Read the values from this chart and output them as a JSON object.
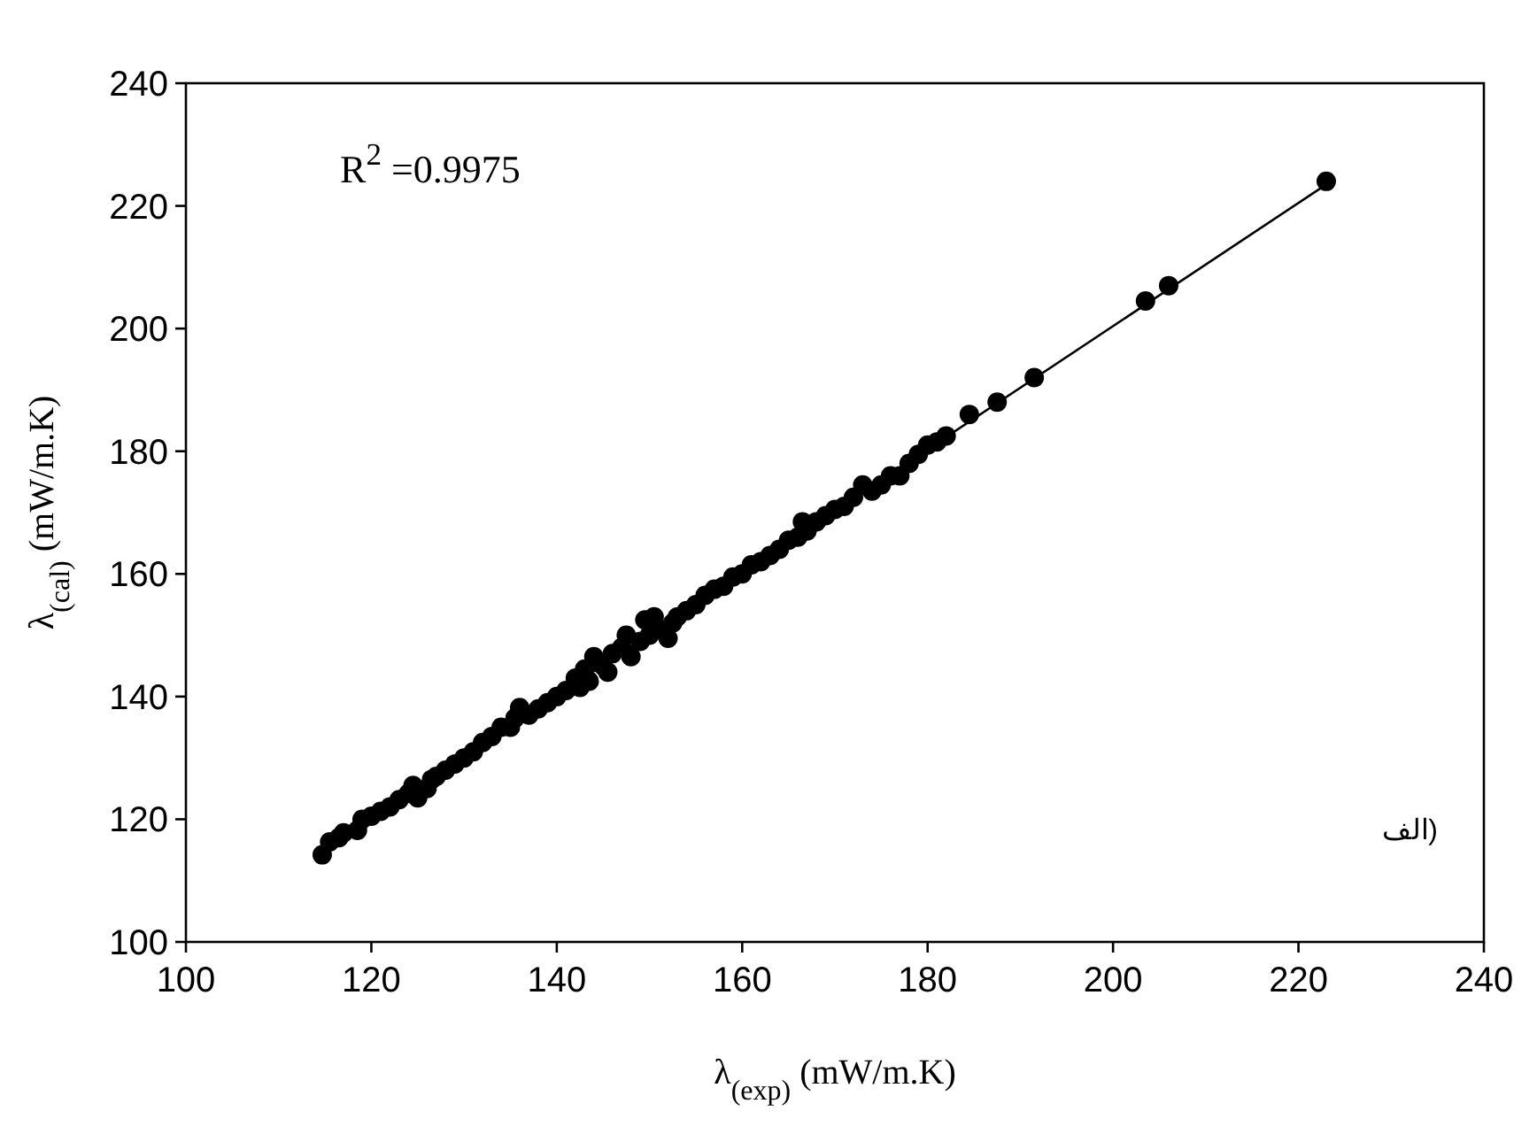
{
  "chart_data": {
    "type": "scatter",
    "xlabel": "λ$_{(exp)}$ (mW/m.K)",
    "ylabel": "λ$_{(cal)}$ (mW/m.K)",
    "xlim": [
      100,
      240
    ],
    "xticks": [
      100,
      120,
      140,
      160,
      180,
      200,
      220,
      240
    ],
    "ylim": [
      100,
      240
    ],
    "yticks": [
      100,
      120,
      140,
      160,
      180,
      200,
      220,
      240
    ],
    "grid": false,
    "annotations": [
      "R$^{2}$ =0.9975",
      "الف)"
    ],
    "series": [
      {
        "type": "scatter",
        "marker": "circle",
        "color": "#000000",
        "x": [
          114.7,
          115.5,
          116.5,
          117,
          118.5,
          119,
          120,
          121,
          122,
          123,
          124,
          124.5,
          125,
          126,
          126.5,
          127,
          128,
          129,
          130,
          131,
          132,
          133,
          134,
          135,
          135.5,
          136,
          137,
          138,
          139,
          140,
          141,
          142,
          142.5,
          143,
          143.5,
          144,
          145,
          145.5,
          146,
          147,
          147.5,
          148,
          149,
          149.5,
          150,
          150.5,
          151,
          152,
          152.5,
          153,
          154,
          155,
          156,
          157,
          158,
          159,
          160,
          161,
          162,
          163,
          164,
          165,
          166,
          166.5,
          167,
          168,
          169,
          170,
          171,
          172,
          173,
          174,
          175,
          176,
          177,
          178,
          179,
          180,
          181,
          182,
          184.5,
          187.5,
          191.5,
          203.5,
          206,
          223
        ],
        "values": [
          114.2,
          116.3,
          117,
          117.8,
          118.2,
          120,
          120.5,
          121.3,
          122,
          123.2,
          124.2,
          125.5,
          123.5,
          125,
          126.5,
          127,
          128,
          129,
          130,
          131,
          132.5,
          133.5,
          135,
          135,
          136.5,
          138.2,
          137,
          138,
          139,
          140,
          141,
          143,
          141.5,
          144.5,
          142.5,
          146.5,
          145,
          144,
          147,
          148,
          150,
          146.5,
          149,
          152.5,
          150,
          153,
          151,
          149.5,
          152,
          153,
          154,
          155,
          156.5,
          157.5,
          158,
          159.5,
          160,
          161.5,
          162,
          163,
          164,
          165.5,
          166,
          168.5,
          167,
          168.5,
          169.5,
          170.5,
          171,
          172.5,
          174.5,
          173.5,
          174.5,
          176,
          176,
          178,
          179.5,
          181,
          181.5,
          182.5,
          186,
          188,
          192,
          204.5,
          207,
          224
        ]
      },
      {
        "type": "line",
        "marker": "none",
        "line_style": "solid",
        "color": "#000000",
        "x": [
          114.5,
          223
        ],
        "values": [
          114.5,
          223.5
        ]
      }
    ]
  }
}
